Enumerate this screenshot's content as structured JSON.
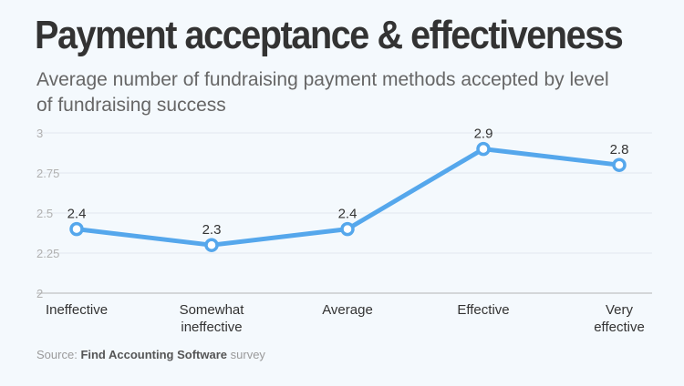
{
  "chart_data": {
    "type": "line",
    "title": "Payment acceptance & effectiveness",
    "subtitle": "Average number of fundraising payment methods accepted by level of fundraising success",
    "categories": [
      "Ineffective",
      "Somewhat ineffective",
      "Average",
      "Effective",
      "Very effective"
    ],
    "category_lines": [
      [
        "Ineffective"
      ],
      [
        "Somewhat",
        "ineffective"
      ],
      [
        "Average"
      ],
      [
        "Effective"
      ],
      [
        "Very",
        "effective"
      ]
    ],
    "values": [
      2.4,
      2.3,
      2.4,
      2.9,
      2.8
    ],
    "data_labels": [
      "2.4",
      "2.3",
      "2.4",
      "2.9",
      "2.8"
    ],
    "ylim": [
      2,
      3
    ],
    "yticks": [
      2,
      2.25,
      2.5,
      2.75,
      3
    ],
    "ytick_labels": [
      "2",
      "2.25",
      "2.5",
      "2.75",
      "3"
    ],
    "xlabel": "",
    "ylabel": "",
    "grid": true,
    "line_color": "#55a7ec",
    "marker_fill": "#ffffff"
  },
  "source": {
    "prefix": "Source:",
    "name": "Find Accounting Software",
    "suffix": "survey"
  }
}
